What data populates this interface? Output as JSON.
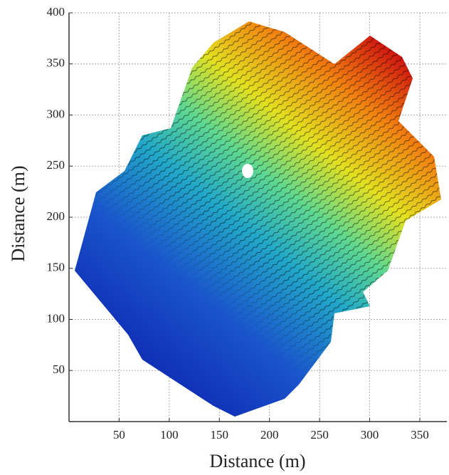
{
  "chart_data": {
    "type": "contour",
    "xlabel": "Distance (m)",
    "ylabel": "Distance (m)",
    "xlim": [
      0,
      377
    ],
    "ylim": [
      0,
      400
    ],
    "xticks": [
      50,
      100,
      150,
      200,
      250,
      300,
      350
    ],
    "yticks": [
      50,
      100,
      150,
      200,
      250,
      300,
      350,
      400
    ],
    "grid": true
  }
}
